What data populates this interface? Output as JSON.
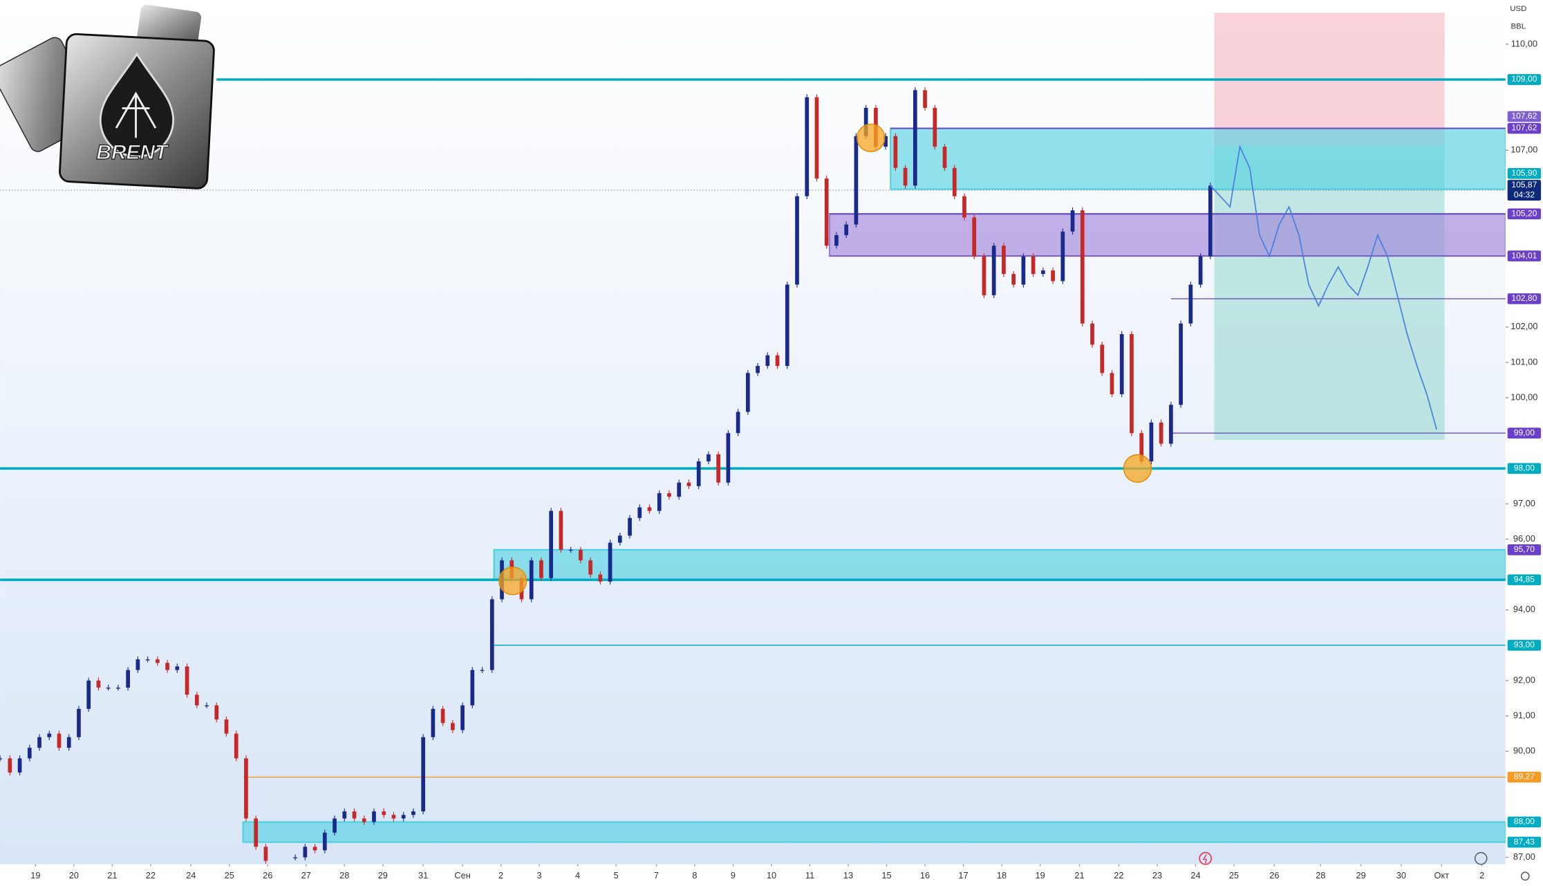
{
  "chart_data": {
    "type": "candlestick",
    "currency": "USD",
    "unit": "BBL",
    "logo_text": "BRENT",
    "xlim": [
      0,
      153
    ],
    "ylim": [
      86.19,
      111.25
    ],
    "yticks": [
      {
        "value": 110,
        "label": "110,00"
      },
      {
        "value": 107,
        "label": "107,00"
      },
      {
        "value": 102,
        "label": "102,00"
      },
      {
        "value": 101,
        "label": "101,00"
      },
      {
        "value": 100,
        "label": "100,00"
      },
      {
        "value": 97,
        "label": "97,00"
      },
      {
        "value": 96,
        "label": "96,00"
      },
      {
        "value": 94,
        "label": "94,00"
      },
      {
        "value": 92,
        "label": "92,00"
      },
      {
        "value": 91,
        "label": "91,00"
      },
      {
        "value": 90,
        "label": "90,00"
      },
      {
        "value": 87,
        "label": "87,00"
      }
    ],
    "xticks": [
      {
        "value": 3.6,
        "label": "19"
      },
      {
        "value": 7.5,
        "label": "20"
      },
      {
        "value": 11.4,
        "label": "21"
      },
      {
        "value": 15.3,
        "label": "22"
      },
      {
        "value": 19.4,
        "label": "24"
      },
      {
        "value": 23.3,
        "label": "25"
      },
      {
        "value": 27.2,
        "label": "26"
      },
      {
        "value": 31.1,
        "label": "27"
      },
      {
        "value": 35.0,
        "label": "28"
      },
      {
        "value": 38.9,
        "label": "29"
      },
      {
        "value": 43.0,
        "label": "31"
      },
      {
        "value": 47.0,
        "label": "Сен"
      },
      {
        "value": 50.9,
        "label": "2"
      },
      {
        "value": 54.8,
        "label": "3"
      },
      {
        "value": 58.7,
        "label": "4"
      },
      {
        "value": 62.6,
        "label": "5"
      },
      {
        "value": 66.7,
        "label": "7"
      },
      {
        "value": 70.6,
        "label": "8"
      },
      {
        "value": 74.5,
        "label": "9"
      },
      {
        "value": 78.4,
        "label": "10"
      },
      {
        "value": 82.3,
        "label": "11"
      },
      {
        "value": 86.2,
        "label": "13"
      },
      {
        "value": 90.1,
        "label": "15"
      },
      {
        "value": 94.0,
        "label": "16"
      },
      {
        "value": 97.9,
        "label": "17"
      },
      {
        "value": 101.8,
        "label": "18"
      },
      {
        "value": 105.7,
        "label": "19"
      },
      {
        "value": 109.7,
        "label": "21"
      },
      {
        "value": 113.7,
        "label": "22"
      },
      {
        "value": 117.6,
        "label": "23"
      },
      {
        "value": 121.5,
        "label": "24"
      },
      {
        "value": 125.4,
        "label": "25"
      },
      {
        "value": 129.5,
        "label": "26"
      },
      {
        "value": 134.2,
        "label": "28"
      },
      {
        "value": 138.3,
        "label": "29"
      },
      {
        "value": 142.4,
        "label": "30"
      },
      {
        "value": 146.5,
        "label": "Окт"
      },
      {
        "value": 150.6,
        "label": "2"
      }
    ],
    "series": [
      {
        "up_color": "#1a2a8c",
        "down_color": "#c62828",
        "values": [
          89.8,
          89.4,
          89.8,
          90.1,
          90.4,
          90.5,
          90.1,
          90.4,
          91.2,
          92.0,
          91.8,
          91.8,
          91.8,
          92.3,
          92.6,
          92.6,
          92.5,
          92.3,
          92.4,
          91.6,
          91.3,
          91.3,
          90.9,
          90.5,
          89.8,
          88.1,
          87.3,
          86.9,
          null,
          null,
          87.0,
          87.3,
          87.2,
          87.7,
          88.1,
          88.3,
          88.1,
          88.0,
          88.3,
          88.2,
          88.1,
          88.2,
          88.3,
          90.4,
          91.2,
          90.8,
          90.6,
          91.3,
          92.3,
          92.3,
          94.3,
          95.4,
          94.9,
          94.3,
          95.4,
          94.9,
          96.8,
          95.7,
          95.7,
          95.4,
          95.0,
          94.8,
          95.9,
          96.1,
          96.6,
          96.9,
          96.8,
          97.3,
          97.2,
          97.6,
          97.5,
          98.2,
          98.4,
          97.6,
          99.0,
          99.6,
          100.7,
          100.9,
          101.2,
          100.9,
          103.2,
          105.7,
          108.5,
          106.2,
          104.3,
          104.6,
          104.9,
          107.4,
          108.2,
          107.1,
          107.4,
          106.5,
          106.0,
          108.7,
          108.2,
          107.1,
          106.5,
          105.7,
          105.1,
          104.0,
          102.9,
          104.3,
          103.5,
          103.2,
          104.0,
          103.5,
          103.6,
          103.3,
          104.7,
          105.3,
          102.1,
          101.5,
          100.7,
          100.1,
          101.8,
          99.0,
          98.2,
          99.3,
          98.7,
          99.8,
          102.1,
          103.2,
          104.0,
          106.0,
          null,
          null,
          null,
          null,
          null,
          null,
          null,
          null,
          null,
          null,
          null,
          null,
          null,
          null,
          null,
          null,
          null,
          null,
          null,
          null,
          null,
          null,
          null
        ]
      },
      {
        "type": "line",
        "color": "#4a7de0",
        "values": [
          null,
          null,
          null,
          null,
          null,
          null,
          null,
          null,
          null,
          null,
          null,
          null,
          null,
          null,
          null,
          null,
          null,
          null,
          null,
          null,
          null,
          null,
          null,
          null,
          null,
          null,
          null,
          null,
          null,
          null,
          null,
          null,
          null,
          null,
          null,
          null,
          null,
          null,
          null,
          null,
          null,
          null,
          null,
          null,
          null,
          null,
          null,
          null,
          null,
          null,
          null,
          null,
          null,
          null,
          null,
          null,
          null,
          null,
          null,
          null,
          null,
          null,
          null,
          null,
          null,
          null,
          null,
          null,
          null,
          null,
          null,
          null,
          null,
          null,
          null,
          null,
          null,
          null,
          null,
          null,
          null,
          null,
          null,
          null,
          null,
          null,
          null,
          null,
          null,
          null,
          null,
          null,
          null,
          null,
          null,
          null,
          null,
          null,
          null,
          null,
          null,
          null,
          null,
          null,
          null,
          null,
          null,
          null,
          null,
          null,
          null,
          null,
          null,
          null,
          null,
          null,
          null,
          null,
          null,
          null,
          null,
          null,
          null,
          106.0,
          105.7,
          105.4,
          107.1,
          106.5,
          104.6,
          104.0,
          104.9,
          105.4,
          104.6,
          103.2,
          102.6,
          103.2,
          103.7,
          103.2,
          102.9,
          103.7,
          104.6,
          104.0,
          102.9,
          101.8,
          100.9,
          100.1,
          99.1
        ]
      }
    ],
    "zones": [
      {
        "low": 87.43,
        "high": 88.0,
        "start": 24.7,
        "color": "#4dd0e1"
      },
      {
        "low": 94.85,
        "high": 95.7,
        "start": 50.2,
        "color": "#4dd0e1"
      },
      {
        "low": 104.01,
        "high": 105.2,
        "start": 84.3,
        "color": "#9c7fd9"
      },
      {
        "low": 105.9,
        "high": 107.62,
        "start": 90.5,
        "color": "#4dd0e1"
      }
    ],
    "levels": [
      {
        "value": 109,
        "start": 22,
        "color": "#00acc1",
        "width": 2.5
      },
      {
        "value": 98,
        "start": 0,
        "color": "#00acc1",
        "width": 2.5
      },
      {
        "value": 94.85,
        "start": 0,
        "color": "#00acc1",
        "width": 2.5
      },
      {
        "value": 93,
        "start": 50,
        "color": "#00acc1",
        "width": 1
      },
      {
        "value": 89.27,
        "start": 24.7,
        "color": "#f59a23",
        "width": 1
      },
      {
        "value": 107.62,
        "start": 90.5,
        "color": "#6a4fc0",
        "width": 1.5
      },
      {
        "value": 105.2,
        "start": 84.3,
        "color": "#6a4fc0",
        "width": 1.5
      },
      {
        "value": 104.01,
        "start": 84.3,
        "color": "#6a4fc0",
        "width": 1
      },
      {
        "value": 102.8,
        "start": 119,
        "color": "#6a4fc0",
        "width": 1
      },
      {
        "value": 99,
        "start": 119,
        "color": "#6a4fc0",
        "width": 1
      }
    ],
    "position": {
      "start": 123.4,
      "end": 146.8,
      "stop": 110.89,
      "entry": 107.13,
      "target": 98.81,
      "stop_color": "#f6a5b3",
      "target_color": "#7fd0c4"
    },
    "markers": [
      {
        "x": 88.5,
        "y": 107.35,
        "color": "#f5a623"
      },
      {
        "x": 52.1,
        "y": 94.82,
        "color": "#f5a623"
      },
      {
        "x": 115.6,
        "y": 98.0,
        "color": "#f5a623"
      }
    ],
    "current_price": {
      "value": 105.87,
      "label": "105,87",
      "time": "04:32",
      "color": "#0d2a7a"
    },
    "price_labels": [
      {
        "value": 109,
        "label": "109,00",
        "color": "#00acc1"
      },
      {
        "value": 107.62,
        "label": "107,62",
        "color": "#6a3fc9"
      },
      {
        "value": 107.62,
        "label": "107,62",
        "color": "#7e5fd0"
      },
      {
        "value": 105.9,
        "label": "105,90",
        "color": "#00acc1"
      },
      {
        "value": 105.2,
        "label": "105,20",
        "color": "#6a3fc9"
      },
      {
        "value": 104.01,
        "label": "104,01",
        "color": "#6a3fc9"
      },
      {
        "value": 102.8,
        "label": "102,80",
        "color": "#6a3fc9"
      },
      {
        "value": 99,
        "label": "99,00",
        "color": "#6a3fc9"
      },
      {
        "value": 98,
        "label": "98,00",
        "color": "#00acc1"
      },
      {
        "value": 95.7,
        "label": "95,70",
        "color": "#6a3fc9"
      },
      {
        "value": 94.85,
        "label": "94,85",
        "color": "#00acc1"
      },
      {
        "value": 93,
        "label": "93,00",
        "color": "#00acc1"
      },
      {
        "value": 89.27,
        "label": "89,27",
        "color": "#f59a23"
      },
      {
        "value": 88,
        "label": "88,00",
        "color": "#00acc1"
      },
      {
        "value": 87.43,
        "label": "87,43",
        "color": "#00acc1"
      }
    ]
  }
}
